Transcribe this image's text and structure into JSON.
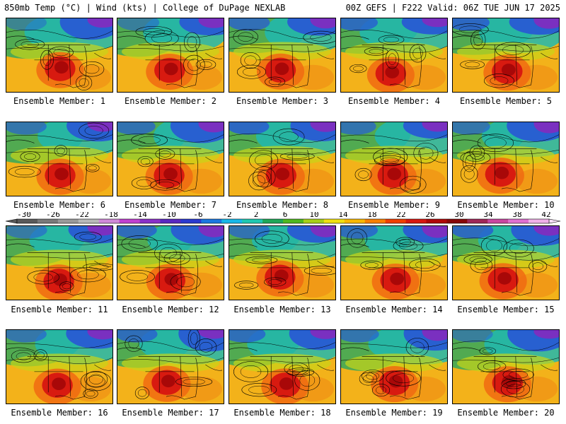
{
  "header": {
    "left_title": "850mb Temp (°C) | Wind (kts) | College of DuPage NEXLAB",
    "right_title": "00Z GEFS | F222 Valid: 06Z TUE JUN 17 2025"
  },
  "members": [
    {
      "label": "Ensemble Member: 1"
    },
    {
      "label": "Ensemble Member: 2"
    },
    {
      "label": "Ensemble Member: 3"
    },
    {
      "label": "Ensemble Member: 4"
    },
    {
      "label": "Ensemble Member: 5"
    },
    {
      "label": "Ensemble Member: 6"
    },
    {
      "label": "Ensemble Member: 7"
    },
    {
      "label": "Ensemble Member: 8"
    },
    {
      "label": "Ensemble Member: 9"
    },
    {
      "label": "Ensemble Member: 10"
    },
    {
      "label": "Ensemble Member: 11"
    },
    {
      "label": "Ensemble Member: 12"
    },
    {
      "label": "Ensemble Member: 13"
    },
    {
      "label": "Ensemble Member: 14"
    },
    {
      "label": "Ensemble Member: 15"
    },
    {
      "label": "Ensemble Member: 16"
    },
    {
      "label": "Ensemble Member: 17"
    },
    {
      "label": "Ensemble Member: 18"
    },
    {
      "label": "Ensemble Member: 19"
    },
    {
      "label": "Ensemble Member: 20"
    }
  ],
  "colorbar": {
    "ticks": [
      "-30",
      "-26",
      "-22",
      "-18",
      "-14",
      "-10",
      "-6",
      "-2",
      "2",
      "6",
      "10",
      "14",
      "18",
      "22",
      "26",
      "30",
      "34",
      "38",
      "42"
    ],
    "colors": [
      "#5a5a5a",
      "#7a7a7a",
      "#9a9a9a",
      "#b8b8b8",
      "#d08ad8",
      "#c040d0",
      "#8a30c8",
      "#5a28c0",
      "#2a3ad0",
      "#1a78e0",
      "#18b8e8",
      "#20c8b0",
      "#20a858",
      "#50b820",
      "#a8d018",
      "#f0e010",
      "#f8b800",
      "#f88000",
      "#f04000",
      "#d81810",
      "#b00808",
      "#880808",
      "#a02858",
      "#c848a0",
      "#e070d0",
      "#f0b0e8"
    ]
  },
  "map_colors": {
    "ocean": "#f3b21a",
    "gulf": "#f08a14",
    "north_green": "#3fa858",
    "canada_cyan": "#20b8b0",
    "arctic_blue": "#2860d0",
    "arctic_purple": "#7a30c0",
    "yellow_band": "#c8d418",
    "heat_orange": "#f06a12",
    "heat_red": "#d81a10",
    "heat_core": "#a80808"
  }
}
